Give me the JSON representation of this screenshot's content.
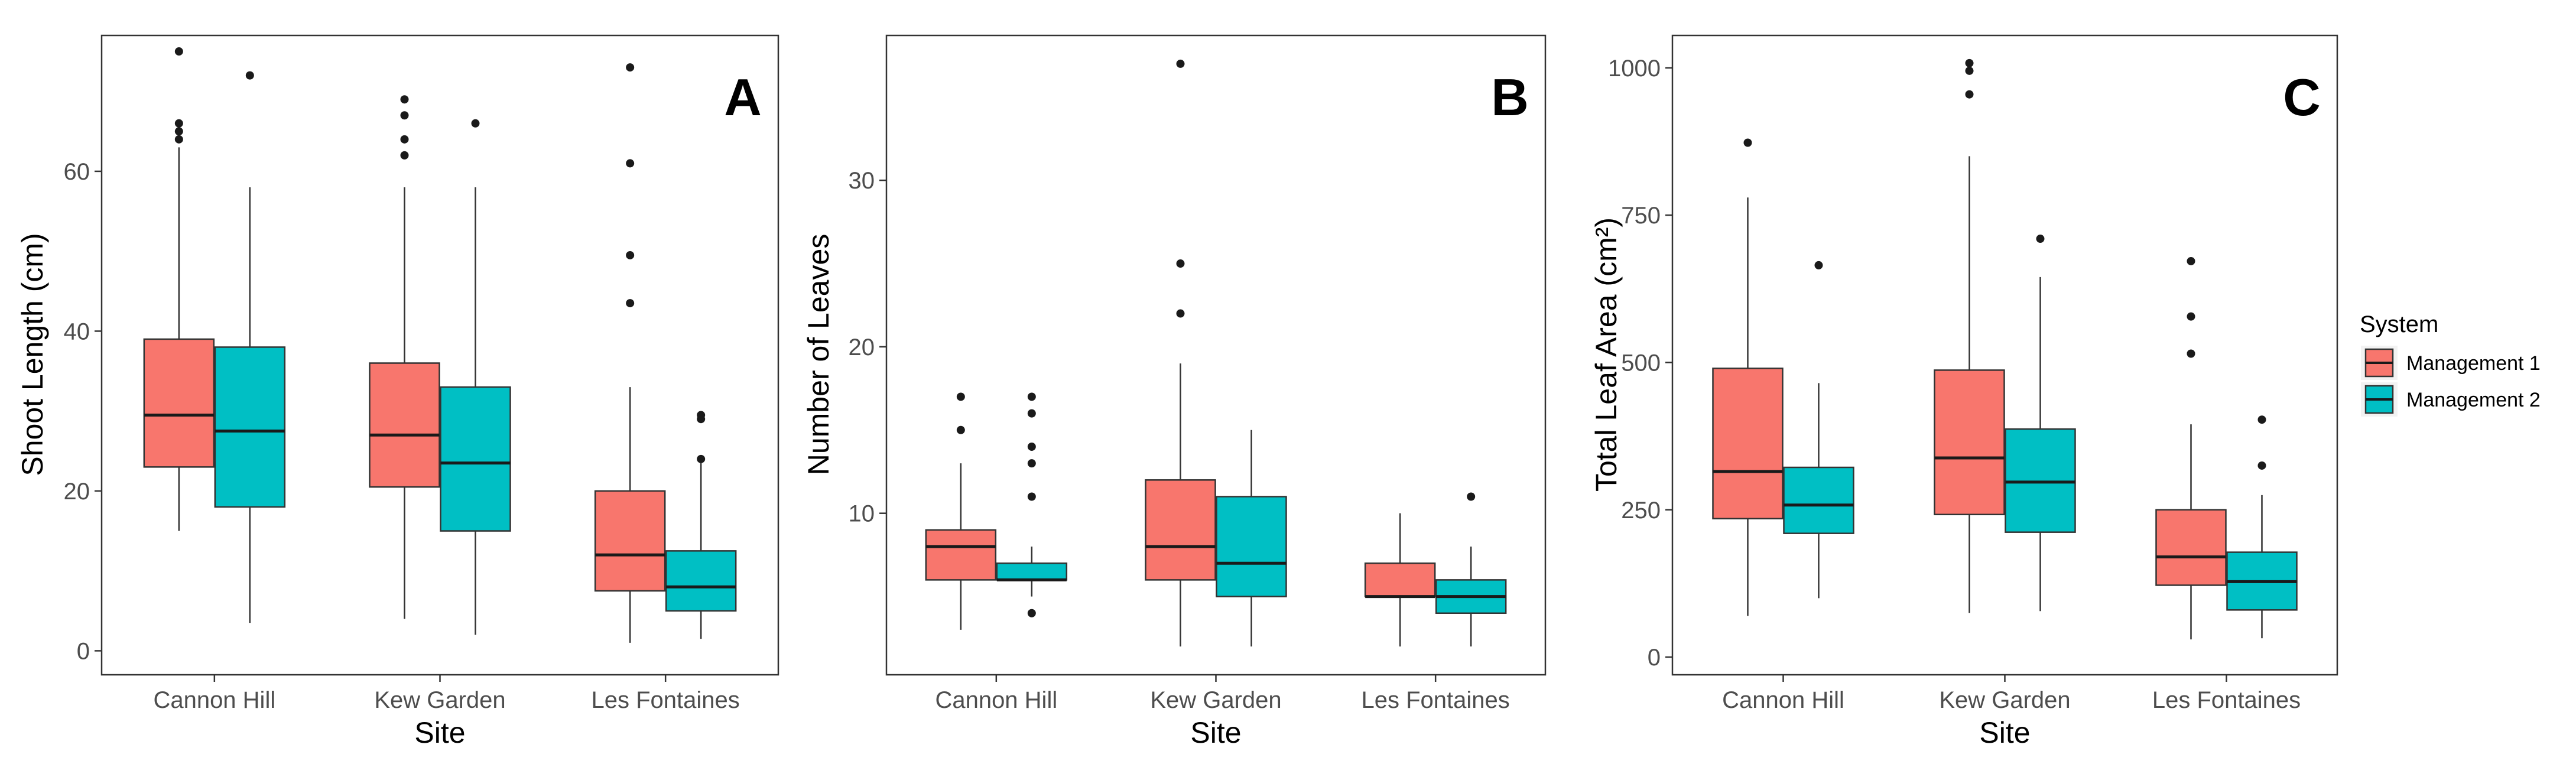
{
  "legend": {
    "title": "System",
    "items": [
      {
        "label": "Management 1",
        "color": "#F8766D"
      },
      {
        "label": "Management 2",
        "color": "#00BFC4"
      }
    ]
  },
  "chart_data": [
    {
      "type": "boxplot",
      "panel_label": "A",
      "xlabel": "Site",
      "ylabel": "Shoot Length (cm)",
      "categories": [
        "Cannon Hill",
        "Kew Garden",
        "Les Fontaines"
      ],
      "ylim": [
        -3,
        77
      ],
      "yticks": [
        0,
        20,
        40,
        60
      ],
      "series": [
        {
          "name": "Management 1",
          "boxes": [
            {
              "min": 15,
              "q1": 23,
              "median": 29.5,
              "q3": 39,
              "max": 63,
              "outliers": [
                64,
                65,
                66,
                75
              ]
            },
            {
              "min": 4,
              "q1": 20.5,
              "median": 27,
              "q3": 36,
              "max": 58,
              "outliers": [
                62,
                64,
                67,
                69
              ]
            },
            {
              "min": 1,
              "q1": 7.5,
              "median": 12,
              "q3": 20,
              "max": 33,
              "outliers": [
                43.5,
                49.5,
                61,
                73
              ]
            }
          ]
        },
        {
          "name": "Management 2",
          "boxes": [
            {
              "min": 3.5,
              "q1": 18,
              "median": 27.5,
              "q3": 38,
              "max": 58,
              "outliers": [
                72
              ]
            },
            {
              "min": 2,
              "q1": 15,
              "median": 23.5,
              "q3": 33,
              "max": 58,
              "outliers": [
                66
              ]
            },
            {
              "min": 1.5,
              "q1": 5,
              "median": 8,
              "q3": 12.5,
              "max": 23.5,
              "outliers": [
                24,
                29,
                29.5
              ]
            }
          ]
        }
      ]
    },
    {
      "type": "boxplot",
      "panel_label": "B",
      "xlabel": "Site",
      "ylabel": "Number of Leaves",
      "categories": [
        "Cannon Hill",
        "Kew Garden",
        "Les Fontaines"
      ],
      "ylim": [
        0.3,
        38.7
      ],
      "yticks": [
        10,
        20,
        30
      ],
      "series": [
        {
          "name": "Management 1",
          "boxes": [
            {
              "min": 3,
              "q1": 6,
              "median": 8,
              "q3": 9,
              "max": 13,
              "outliers": [
                15,
                17
              ]
            },
            {
              "min": 2,
              "q1": 6,
              "median": 8,
              "q3": 12,
              "max": 19,
              "outliers": [
                22,
                25,
                37
              ]
            },
            {
              "min": 2,
              "q1": 5,
              "median": 5,
              "q3": 7,
              "max": 10,
              "outliers": []
            }
          ]
        },
        {
          "name": "Management 2",
          "boxes": [
            {
              "min": 5,
              "q1": 6,
              "median": 6,
              "q3": 7,
              "max": 8,
              "outliers": [
                4,
                11,
                13,
                14,
                16,
                17
              ]
            },
            {
              "min": 2,
              "q1": 5,
              "median": 7,
              "q3": 11,
              "max": 15,
              "outliers": []
            },
            {
              "min": 2,
              "q1": 4,
              "median": 5,
              "q3": 6,
              "max": 8,
              "outliers": [
                11
              ]
            }
          ]
        }
      ]
    },
    {
      "type": "boxplot",
      "panel_label": "C",
      "xlabel": "Site",
      "ylabel": "Total Leaf Area (cm²)",
      "categories": [
        "Cannon Hill",
        "Kew Garden",
        "Les Fontaines"
      ],
      "ylim": [
        -30,
        1055
      ],
      "yticks": [
        0,
        250,
        500,
        750,
        1000
      ],
      "series": [
        {
          "name": "Management 1",
          "boxes": [
            {
              "min": 70,
              "q1": 235,
              "median": 315,
              "q3": 490,
              "max": 780,
              "outliers": [
                873
              ]
            },
            {
              "min": 75,
              "q1": 242,
              "median": 338,
              "q3": 487,
              "max": 850,
              "outliers": [
                955,
                995,
                1008
              ]
            },
            {
              "min": 30,
              "q1": 122,
              "median": 170,
              "q3": 250,
              "max": 395,
              "outliers": [
                515,
                578,
                672
              ]
            }
          ]
        },
        {
          "name": "Management 2",
          "boxes": [
            {
              "min": 100,
              "q1": 210,
              "median": 258,
              "q3": 322,
              "max": 465,
              "outliers": [
                665
              ]
            },
            {
              "min": 78,
              "q1": 212,
              "median": 297,
              "q3": 387,
              "max": 645,
              "outliers": [
                710
              ]
            },
            {
              "min": 32,
              "q1": 80,
              "median": 128,
              "q3": 178,
              "max": 275,
              "outliers": [
                325,
                403
              ]
            }
          ]
        }
      ]
    }
  ]
}
